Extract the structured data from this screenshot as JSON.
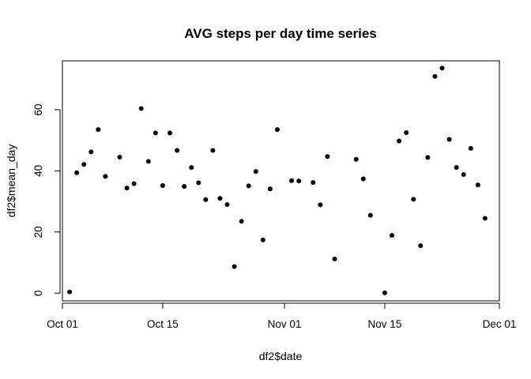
{
  "chart_data": {
    "type": "scatter",
    "title": "AVG steps per day time series",
    "xlabel": "df2$date",
    "ylabel": "df2$mean_day",
    "xlim": [
      "2012-10-01",
      "2012-12-01"
    ],
    "ylim": [
      -2.5,
      76
    ],
    "x_ticks": [
      "2012-10-01",
      "2012-10-15",
      "2012-11-01",
      "2012-11-15",
      "2012-12-01"
    ],
    "x_tick_labels": [
      "Oct 01",
      "Oct 15",
      "Nov 01",
      "Nov 15",
      "Dec 01"
    ],
    "y_ticks": [
      0,
      20,
      40,
      60
    ],
    "y_tick_labels": [
      "0",
      "20",
      "40",
      "60"
    ],
    "grid": false,
    "legend": "none",
    "point_color": "#000000",
    "series": [
      {
        "x": [
          "2012-10-02",
          "2012-10-03",
          "2012-10-04",
          "2012-10-05",
          "2012-10-06",
          "2012-10-07",
          "2012-10-09",
          "2012-10-10",
          "2012-10-11",
          "2012-10-12",
          "2012-10-13",
          "2012-10-14",
          "2012-10-15",
          "2012-10-16",
          "2012-10-17",
          "2012-10-18",
          "2012-10-19",
          "2012-10-20",
          "2012-10-21",
          "2012-10-22",
          "2012-10-23",
          "2012-10-24",
          "2012-10-25",
          "2012-10-26",
          "2012-10-27",
          "2012-10-28",
          "2012-10-29",
          "2012-10-30",
          "2012-10-31",
          "2012-11-02",
          "2012-11-03",
          "2012-11-05",
          "2012-11-06",
          "2012-11-07",
          "2012-11-08",
          "2012-11-11",
          "2012-11-12",
          "2012-11-13",
          "2012-11-15",
          "2012-11-16",
          "2012-11-17",
          "2012-11-18",
          "2012-11-19",
          "2012-11-20",
          "2012-11-21",
          "2012-11-22",
          "2012-11-23",
          "2012-11-24",
          "2012-11-25",
          "2012-11-26",
          "2012-11-27",
          "2012-11-28",
          "2012-11-29"
        ],
        "values": [
          0.4,
          39.4,
          42.1,
          46.2,
          53.5,
          38.2,
          44.5,
          34.4,
          35.8,
          60.4,
          43.1,
          52.4,
          35.2,
          52.4,
          46.7,
          34.9,
          41.1,
          36.1,
          30.6,
          46.7,
          31.0,
          29.0,
          8.7,
          23.5,
          35.1,
          39.8,
          17.4,
          34.1,
          53.5,
          36.8,
          36.7,
          36.2,
          28.9,
          44.7,
          11.2,
          43.8,
          37.4,
          25.5,
          0.1,
          18.9,
          49.8,
          52.5,
          30.7,
          15.5,
          44.4,
          70.9,
          73.6,
          50.3,
          41.1,
          38.8,
          47.4,
          35.4,
          24.5
        ]
      }
    ]
  }
}
